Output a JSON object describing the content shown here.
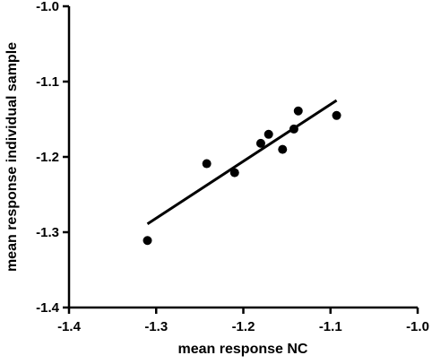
{
  "chart_data": {
    "type": "scatter",
    "title": "",
    "xlabel": "mean response NC",
    "ylabel": "mean response individual sample",
    "xlim": [
      -1.4,
      -1.0
    ],
    "ylim": [
      -1.4,
      -1.0
    ],
    "x_ticks": [
      -1.4,
      -1.3,
      -1.2,
      -1.1,
      -1.0
    ],
    "y_ticks": [
      -1.4,
      -1.3,
      -1.2,
      -1.1,
      -1.0
    ],
    "x_tick_labels": [
      "-1.4",
      "-1.3",
      "-1.2",
      "-1.1",
      "-1.0"
    ],
    "y_tick_labels": [
      "-1.4",
      "-1.3",
      "-1.2",
      "-1.1",
      "-1.0"
    ],
    "grid": false,
    "legend": "none",
    "colors": {
      "marker": "#000000",
      "line": "#000000",
      "axis": "#000000"
    },
    "series": [
      {
        "points": [
          {
            "x": -1.31,
            "y": -1.311
          },
          {
            "x": -1.242,
            "y": -1.209
          },
          {
            "x": -1.21,
            "y": -1.221
          },
          {
            "x": -1.18,
            "y": -1.182
          },
          {
            "x": -1.171,
            "y": -1.17
          },
          {
            "x": -1.155,
            "y": -1.19
          },
          {
            "x": -1.142,
            "y": -1.163
          },
          {
            "x": -1.137,
            "y": -1.139
          },
          {
            "x": -1.093,
            "y": -1.145
          }
        ]
      }
    ],
    "fit_line": {
      "start": {
        "x": -1.31,
        "y": -1.289
      },
      "end": {
        "x": -1.093,
        "y": -1.125
      }
    }
  }
}
